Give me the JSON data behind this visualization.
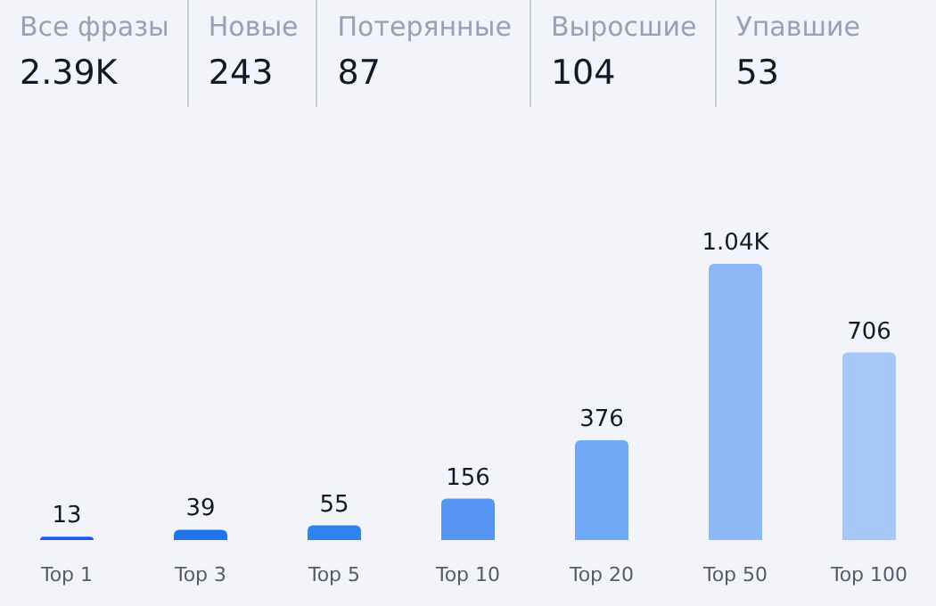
{
  "chart_data": {
    "type": "bar",
    "annotations": [
      "Все фразы",
      "2.39K",
      "Новые",
      "243",
      "Потерянные",
      "87",
      "Выросшие",
      "104",
      "Упавшие",
      "53"
    ],
    "categories": [
      "Top 1",
      "Top 3",
      "Top 5",
      "Top 10",
      "Top 20",
      "Top 50",
      "Top 100"
    ],
    "values": [
      13,
      39,
      55,
      156,
      376,
      1040,
      706
    ],
    "value_labels": [
      "13",
      "39",
      "55",
      "156",
      "376",
      "1.04K",
      "706"
    ],
    "colors": [
      "#1a5cf0",
      "#1f74eb",
      "#2e84ee",
      "#5594f0",
      "#6fa8f4",
      "#8cb8f6",
      "#a6c8f8"
    ],
    "grid": false
  }
}
